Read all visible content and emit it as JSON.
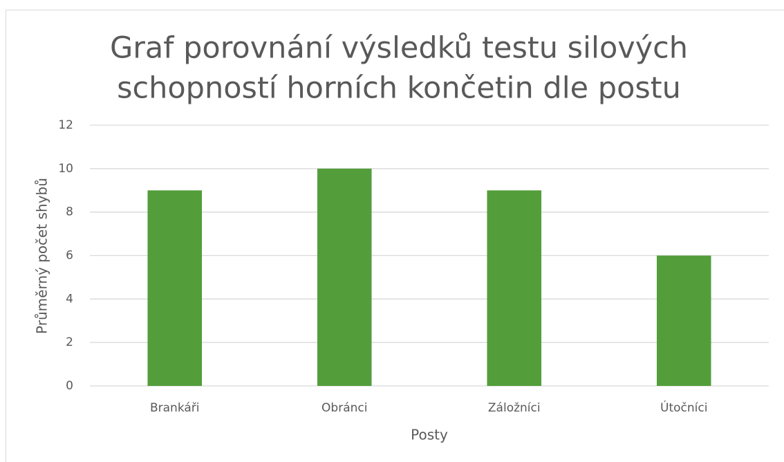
{
  "chart_data": {
    "type": "bar",
    "title": [
      "Graf porovnání výsledků testu silových",
      "schopností horních končetin dle postu"
    ],
    "x_label": "Posty",
    "y_label": "Průměrný počet shybů",
    "categories": [
      "Brankáři",
      "Obránci",
      "Záložníci",
      "Útočníci"
    ],
    "values": [
      9,
      10,
      9,
      6
    ],
    "color": "#539e3b",
    "ylim": [
      0,
      12
    ],
    "yticks": [
      0,
      2,
      4,
      6,
      8,
      10,
      12
    ],
    "grid": true
  }
}
